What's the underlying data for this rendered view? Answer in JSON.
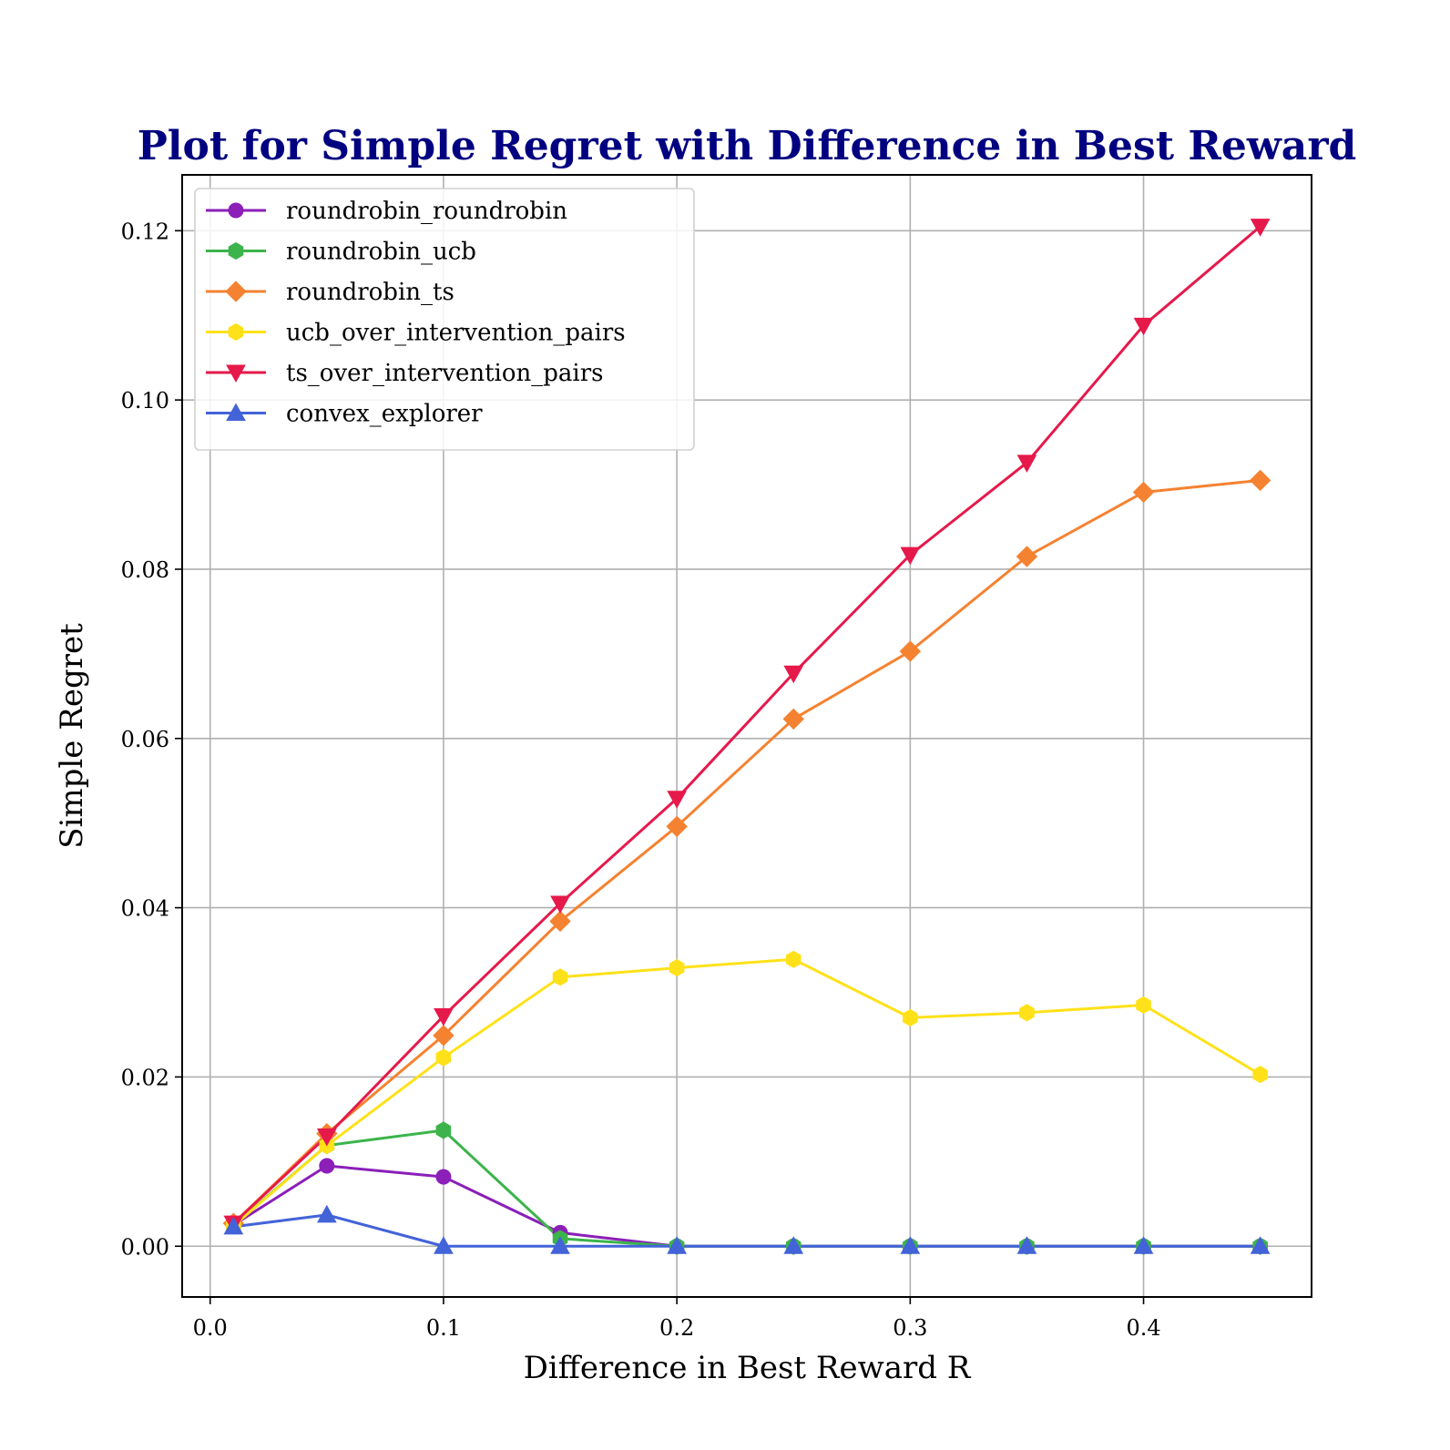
{
  "chart_data": {
    "type": "line",
    "title": "Plot for Simple Regret with Difference in Best Reward",
    "title_color": "#000080",
    "xlabel": "Difference in Best Reward R",
    "ylabel": "Simple Regret",
    "xlim": [
      -0.012,
      0.472
    ],
    "ylim": [
      -0.006,
      0.1266
    ],
    "xticks": [
      0.0,
      0.1,
      0.2,
      0.3,
      0.4
    ],
    "xtick_labels": [
      "0.0",
      "0.1",
      "0.2",
      "0.3",
      "0.4"
    ],
    "yticks": [
      0.0,
      0.02,
      0.04,
      0.06,
      0.08,
      0.1,
      0.12
    ],
    "ytick_labels": [
      "0.00",
      "0.02",
      "0.04",
      "0.06",
      "0.08",
      "0.10",
      "0.12"
    ],
    "grid": true,
    "legend_position": "top-left",
    "x": [
      0.01,
      0.05,
      0.1,
      0.15,
      0.2,
      0.25,
      0.3,
      0.35,
      0.4,
      0.45
    ],
    "series": [
      {
        "name": "roundrobin_roundrobin",
        "color": "#8b1fb8",
        "marker": "circle",
        "values": [
          0.0025,
          0.0095,
          0.0082,
          0.0016,
          0.0,
          0.0,
          0.0,
          0.0,
          0.0,
          0.0
        ]
      },
      {
        "name": "roundrobin_ucb",
        "color": "#3cb44b",
        "marker": "hexagon",
        "values": [
          0.0025,
          0.0119,
          0.0137,
          0.0009,
          0.0,
          0.0,
          0.0,
          0.0,
          0.0,
          0.0
        ]
      },
      {
        "name": "roundrobin_ts",
        "color": "#f58231",
        "marker": "diamond",
        "values": [
          0.0027,
          0.0133,
          0.0249,
          0.0384,
          0.0496,
          0.0623,
          0.0703,
          0.0815,
          0.0891,
          0.0905
        ]
      },
      {
        "name": "ucb_over_intervention_pairs",
        "color": "#ffe119",
        "marker": "hexagon",
        "values": [
          0.0024,
          0.0119,
          0.0223,
          0.0318,
          0.0329,
          0.0339,
          0.027,
          0.0276,
          0.0285,
          0.0203
        ]
      },
      {
        "name": "ts_over_intervention_pairs",
        "color": "#e6194b",
        "marker": "triangle-down",
        "values": [
          0.0027,
          0.013,
          0.0272,
          0.0405,
          0.0529,
          0.0677,
          0.0817,
          0.0926,
          0.1088,
          0.1205
        ]
      },
      {
        "name": "convex_explorer",
        "color": "#4363d8",
        "marker": "triangle-up",
        "values": [
          0.0023,
          0.0037,
          0.0,
          0.0,
          0.0,
          0.0,
          0.0,
          0.0,
          0.0,
          0.0
        ]
      }
    ]
  }
}
